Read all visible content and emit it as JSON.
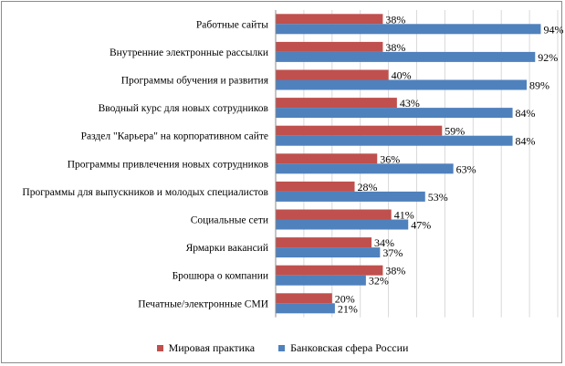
{
  "chart_data": {
    "type": "bar",
    "orientation": "horizontal",
    "categories": [
      "Работные сайты",
      "Внутренние электронные рассылки",
      "Программы обучения и развития",
      "Вводный курс для новых сотрудников",
      "Раздел \"Карьера\" на корпоративном сайте",
      "Программы привлечения новых сотрудников",
      "Программы для выпускников и молодых специалистов",
      "Социальные сети",
      "Ярмарки вакансий",
      "Брошюра о компании",
      "Печатные/электронные СМИ"
    ],
    "series": [
      {
        "name": "Мировая практика",
        "color": "#c0504d",
        "values": [
          38,
          38,
          40,
          43,
          59,
          36,
          28,
          41,
          34,
          38,
          20
        ],
        "labels": [
          "38%",
          "38%",
          "40%",
          "43%",
          "59%",
          "36%",
          "28%",
          "41%",
          "34%",
          "38%",
          "20%"
        ]
      },
      {
        "name": "Банковская сфера России",
        "color": "#4f81bd",
        "values": [
          94,
          92,
          89,
          84,
          84,
          63,
          53,
          47,
          37,
          32,
          21
        ],
        "labels": [
          "94%",
          "92%",
          "89%",
          "84%",
          "84%",
          "63%",
          "53%",
          "47%",
          "37%",
          "32%",
          "21%"
        ]
      }
    ],
    "xlim": [
      0,
      100
    ],
    "unit": "%",
    "grid": true,
    "legend_position": "bottom",
    "gridline_color": "#d9d9d9"
  }
}
